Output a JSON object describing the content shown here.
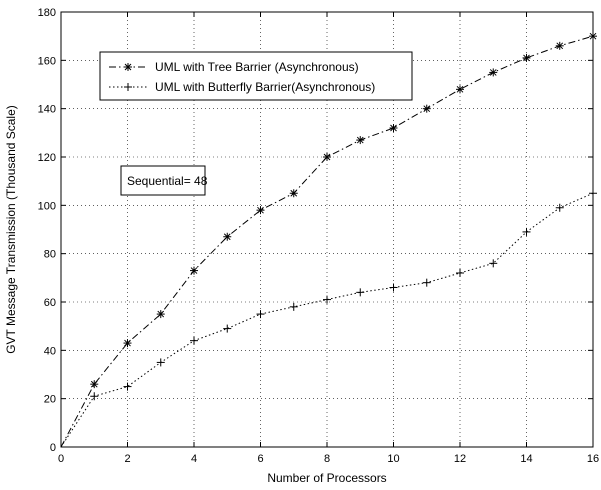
{
  "chart_data": {
    "type": "line",
    "title": "",
    "xlabel": "Number of Processors",
    "ylabel": "GVT Message Transmission (Thousand Scale)",
    "xlim": [
      0,
      16
    ],
    "ylim": [
      0,
      180
    ],
    "xticks": [
      0,
      2,
      4,
      6,
      8,
      10,
      12,
      14,
      16
    ],
    "yticks": [
      0,
      20,
      40,
      60,
      80,
      100,
      120,
      140,
      160,
      180
    ],
    "grid": true,
    "legend_position": "top-left",
    "series": [
      {
        "name": "UML with Tree Barrier (Asynchronous)",
        "marker": "star",
        "line_style": "dash-dot",
        "color": "#000000",
        "x": [
          0,
          1,
          2,
          3,
          4,
          5,
          6,
          7,
          8,
          9,
          10,
          11,
          12,
          13,
          14,
          15,
          16
        ],
        "y": [
          0,
          26,
          43,
          55,
          73,
          87,
          98,
          105,
          120,
          127,
          132,
          140,
          148,
          155,
          161,
          166,
          170
        ]
      },
      {
        "name": "UML with Butterfly Barrier(Asynchronous)",
        "marker": "plus",
        "line_style": "dotted",
        "color": "#000000",
        "x": [
          0,
          1,
          2,
          3,
          4,
          5,
          6,
          7,
          8,
          9,
          10,
          11,
          12,
          13,
          14,
          15,
          16
        ],
        "y": [
          0,
          21,
          25,
          35,
          44,
          49,
          55,
          58,
          61,
          64,
          66,
          68,
          72,
          76,
          89,
          99,
          105
        ]
      }
    ],
    "annotation": "Sequential= 48"
  }
}
